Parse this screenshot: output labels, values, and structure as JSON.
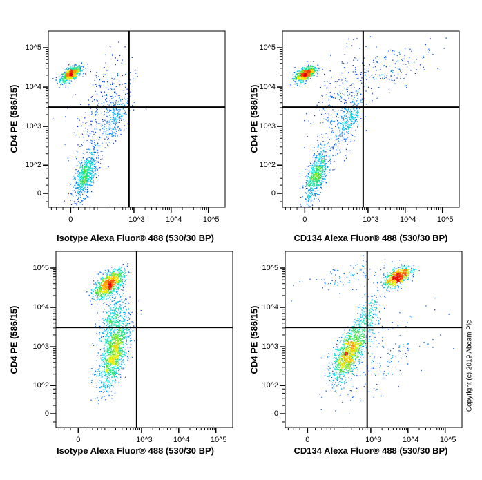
{
  "copyright": "Copyright (c) 2019 Abcam Plc",
  "chart_data": [
    {
      "type": "scatter",
      "xlabel": "Isotype Alexa Fluor® 488  (530/30 BP)",
      "ylabel": "CD4 PE (586/15)",
      "x_ticks": [
        "0",
        "10^3",
        "10^4",
        "10^5"
      ],
      "y_ticks": [
        "0",
        "10^2",
        "10^3",
        "10^4",
        "10^5"
      ],
      "scale": "logicle",
      "gates": {
        "x": 740,
        "y": 3100
      },
      "populations": [
        {
          "x": 0,
          "y": 22000,
          "sx": 0.14,
          "sy": 0.1,
          "n": 700
        },
        {
          "x": 40,
          "y": 50,
          "sx": 0.15,
          "sy": 0.3,
          "n": 650
        },
        {
          "x": 300,
          "y": 1500,
          "sx": 0.18,
          "sy": 0.3,
          "n": 200
        },
        {
          "x": 150,
          "y": 3000,
          "sx": 0.4,
          "sy": 0.8,
          "n": 300
        }
      ]
    },
    {
      "type": "scatter",
      "xlabel": "CD134 Alexa Fluor® 488  (530/30 BP)",
      "ylabel": "CD4 PE (586/15)",
      "x_ticks": [
        "0",
        "10^3",
        "10^4",
        "10^5"
      ],
      "y_ticks": [
        "0",
        "10^2",
        "10^3",
        "10^4",
        "10^5"
      ],
      "scale": "logicle",
      "gates": {
        "x": 740,
        "y": 3100
      },
      "populations": [
        {
          "x": 0,
          "y": 22000,
          "sx": 0.14,
          "sy": 0.1,
          "n": 650
        },
        {
          "x": 30,
          "y": 50,
          "sx": 0.15,
          "sy": 0.3,
          "n": 650
        },
        {
          "x": 300,
          "y": 1500,
          "sx": 0.18,
          "sy": 0.3,
          "n": 280
        },
        {
          "x": 150,
          "y": 3000,
          "sx": 0.4,
          "sy": 0.8,
          "n": 250
        },
        {
          "x": 4000,
          "y": 30000,
          "sx": 0.6,
          "sy": 0.3,
          "n": 140
        }
      ]
    },
    {
      "type": "scatter",
      "xlabel": "Isotype Alexa Fluor® 488  (530/30 BP)",
      "ylabel": "CD4 PE (586/15)",
      "x_ticks": [
        "0",
        "10^3",
        "10^4",
        "10^5"
      ],
      "y_ticks": [
        "0",
        "10^2",
        "10^3",
        "10^4",
        "10^5"
      ],
      "scale": "logicle",
      "gates": {
        "x": 740,
        "y": 3100
      },
      "populations": [
        {
          "x": 130,
          "y": 40000,
          "sx": 0.2,
          "sy": 0.18,
          "n": 900
        },
        {
          "x": 180,
          "y": 700,
          "sx": 0.2,
          "sy": 0.45,
          "n": 1200
        },
        {
          "x": 150,
          "y": 5000,
          "sx": 0.18,
          "sy": 0.3,
          "n": 300
        }
      ]
    },
    {
      "type": "scatter",
      "xlabel": "CD134  Alexa Fluor® 488  (530/30 BP)",
      "ylabel": "CD4 PE (586/15)",
      "x_ticks": [
        "0",
        "10^3",
        "10^4",
        "10^5"
      ],
      "y_ticks": [
        "0",
        "10^2",
        "10^3",
        "10^4",
        "10^5"
      ],
      "scale": "logicle",
      "gates": {
        "x": 800,
        "y": 3100
      },
      "populations": [
        {
          "x": 250,
          "y": 700,
          "sx": 0.22,
          "sy": 0.35,
          "n": 1100
        },
        {
          "x": 5000,
          "y": 60000,
          "sx": 0.18,
          "sy": 0.14,
          "n": 650
        },
        {
          "x": 800,
          "y": 5000,
          "sx": 0.2,
          "sy": 0.35,
          "n": 250
        },
        {
          "x": 2000,
          "y": 500,
          "sx": 0.6,
          "sy": 0.5,
          "n": 150
        },
        {
          "x": 200,
          "y": 60000,
          "sx": 0.6,
          "sy": 0.2,
          "n": 80
        }
      ]
    }
  ]
}
